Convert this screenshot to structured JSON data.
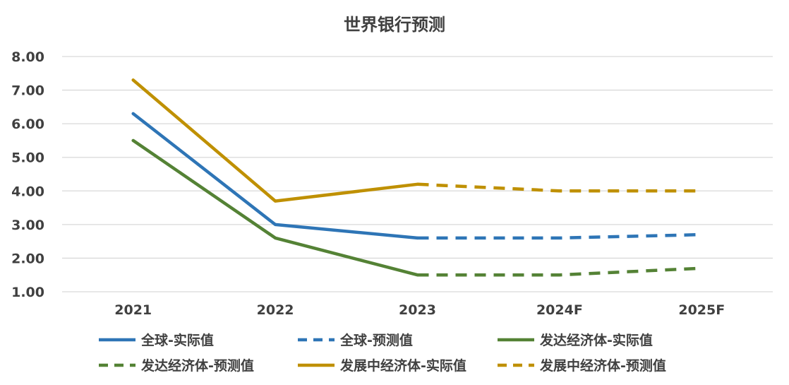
{
  "chart_data": {
    "type": "line",
    "title": "世界银行预测",
    "categories": [
      "2021",
      "2022",
      "2023",
      "2024F",
      "2025F"
    ],
    "y_ticks": [
      "8.00",
      "7.00",
      "6.00",
      "5.00",
      "4.00",
      "3.00",
      "2.00",
      "1.00"
    ],
    "ylim": [
      1,
      8
    ],
    "grid": true,
    "legend_position": "bottom",
    "series": [
      {
        "name": "全球-实际值",
        "style": "solid",
        "color": "#2e75b6",
        "values": [
          6.3,
          3.0,
          2.6,
          null,
          null
        ]
      },
      {
        "name": "全球-预测值",
        "style": "dashed",
        "color": "#2e75b6",
        "values": [
          null,
          null,
          2.6,
          2.6,
          2.7
        ]
      },
      {
        "name": "发达经济体-实际值",
        "style": "solid",
        "color": "#548235",
        "values": [
          5.5,
          2.6,
          1.5,
          null,
          null
        ]
      },
      {
        "name": "发达经济体-预测值",
        "style": "dashed",
        "color": "#548235",
        "values": [
          null,
          null,
          1.5,
          1.5,
          1.7
        ]
      },
      {
        "name": "发展中经济体-实际值",
        "style": "solid",
        "color": "#bf9000",
        "values": [
          7.3,
          3.7,
          4.2,
          null,
          null
        ]
      },
      {
        "name": "发展中经济体-预测值",
        "style": "dashed",
        "color": "#bf9000",
        "values": [
          null,
          null,
          4.2,
          4.0,
          4.0
        ]
      }
    ]
  }
}
